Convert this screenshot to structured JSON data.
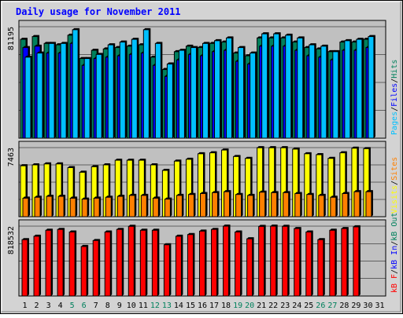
{
  "title": "Daily usage for November 2011",
  "colors": {
    "hits": "#00805c",
    "files": "#0000ff",
    "pages": "#00c0ff",
    "visits": "#ffff00",
    "sites": "#ff8000",
    "kbf": "#ff0000",
    "kbin": "#0000ff",
    "kbout": "#00805c",
    "title": "#0000ff",
    "panel": "#c0c0c0",
    "frame_bg": "#d3d3d3",
    "weekend": "#00805c"
  },
  "chart_data": [
    {
      "type": "bar",
      "ymax_label": "81195",
      "ylim": [
        0,
        81195
      ],
      "legend": [
        {
          "key": "pages",
          "label": "Pages"
        },
        {
          "key": "files",
          "label": "Files"
        },
        {
          "key": "hits",
          "label": "Hits"
        }
      ],
      "categories": [
        "1",
        "2",
        "3",
        "4",
        "5",
        "6",
        "7",
        "8",
        "9",
        "10",
        "11",
        "12",
        "13",
        "14",
        "15",
        "16",
        "17",
        "18",
        "19",
        "20",
        "21",
        "22",
        "23",
        "24",
        "25",
        "26",
        "27",
        "28",
        "29",
        "30",
        "31"
      ],
      "series": [
        {
          "key": "hits",
          "name": "Hits",
          "values": [
            72000,
            74000,
            69000,
            68000,
            75000,
            58000,
            64000,
            65000,
            66000,
            67000,
            68000,
            59000,
            50000,
            63000,
            67000,
            66000,
            69000,
            70000,
            62000,
            60000,
            73000,
            73000,
            73000,
            70000,
            66000,
            65000,
            63000,
            70000,
            70000,
            72000,
            0
          ]
        },
        {
          "key": "files",
          "name": "Files",
          "values": [
            66000,
            67000,
            62000,
            62000,
            69000,
            53000,
            58000,
            59000,
            60000,
            61000,
            62000,
            53000,
            45000,
            57000,
            61000,
            60000,
            63000,
            64000,
            56000,
            54000,
            67000,
            67000,
            67000,
            64000,
            60000,
            59000,
            57000,
            64000,
            64000,
            66000,
            0
          ]
        },
        {
          "key": "pages",
          "name": "Pages",
          "values": [
            59000,
            62000,
            69000,
            69000,
            79000,
            58000,
            61000,
            68000,
            70000,
            72000,
            79000,
            69000,
            54000,
            64000,
            66000,
            69000,
            71000,
            73000,
            66000,
            62000,
            76000,
            76000,
            75000,
            73000,
            68000,
            67000,
            63000,
            71000,
            72000,
            74000,
            0
          ]
        }
      ]
    },
    {
      "type": "bar",
      "ymax_label": "7463",
      "ylim": [
        0,
        7463
      ],
      "legend": [
        {
          "key": "visits",
          "label": "Visits"
        },
        {
          "key": "sites",
          "label": "Sites"
        }
      ],
      "categories": [
        "1",
        "2",
        "3",
        "4",
        "5",
        "6",
        "7",
        "8",
        "9",
        "10",
        "11",
        "12",
        "13",
        "14",
        "15",
        "16",
        "17",
        "18",
        "19",
        "20",
        "21",
        "22",
        "23",
        "24",
        "25",
        "26",
        "27",
        "28",
        "29",
        "30",
        "31"
      ],
      "series": [
        {
          "key": "visits",
          "name": "Visits",
          "values": [
            5500,
            5600,
            5700,
            5700,
            5300,
            4800,
            5400,
            5600,
            6100,
            6100,
            6100,
            5600,
            5000,
            6000,
            6200,
            6800,
            6900,
            7200,
            6500,
            6300,
            7450,
            7450,
            7450,
            7300,
            6800,
            6700,
            6300,
            6900,
            7400,
            7350,
            0
          ]
        },
        {
          "key": "sites",
          "name": "Sites",
          "values": [
            2000,
            2100,
            2200,
            2200,
            2000,
            1900,
            2000,
            2100,
            2200,
            2300,
            2300,
            2000,
            1900,
            2300,
            2400,
            2500,
            2600,
            2700,
            2400,
            2300,
            2650,
            2600,
            2600,
            2500,
            2400,
            2300,
            2100,
            2500,
            2700,
            2700,
            0
          ]
        }
      ]
    },
    {
      "type": "bar",
      "ymax_label": "818532",
      "ylim": [
        0,
        818532
      ],
      "legend": [
        {
          "key": "kbf",
          "label": "kB F"
        },
        {
          "key": "kbin",
          "label": "kB In"
        },
        {
          "key": "kbout",
          "label": "kB Out"
        }
      ],
      "categories": [
        "1",
        "2",
        "3",
        "4",
        "5",
        "6",
        "7",
        "8",
        "9",
        "10",
        "11",
        "12",
        "13",
        "14",
        "15",
        "16",
        "17",
        "18",
        "19",
        "20",
        "21",
        "22",
        "23",
        "24",
        "25",
        "26",
        "27",
        "28",
        "29",
        "30",
        "31"
      ],
      "series": [
        {
          "key": "kbf",
          "name": "kB F",
          "values": [
            660000,
            700000,
            770000,
            780000,
            750000,
            580000,
            650000,
            750000,
            780000,
            816000,
            770000,
            770000,
            600000,
            700000,
            720000,
            760000,
            780000,
            818000,
            750000,
            670000,
            815000,
            818000,
            816000,
            790000,
            750000,
            660000,
            770000,
            790000,
            810000,
            0,
            0
          ]
        }
      ]
    }
  ],
  "xaxis": {
    "labels": [
      "1",
      "2",
      "3",
      "4",
      "5",
      "6",
      "7",
      "8",
      "9",
      "10",
      "11",
      "12",
      "13",
      "14",
      "15",
      "16",
      "17",
      "18",
      "19",
      "20",
      "21",
      "22",
      "23",
      "24",
      "25",
      "26",
      "27",
      "28",
      "29",
      "30",
      "31"
    ],
    "weekend_days": [
      5,
      6,
      12,
      13,
      19,
      20,
      26,
      27
    ]
  }
}
